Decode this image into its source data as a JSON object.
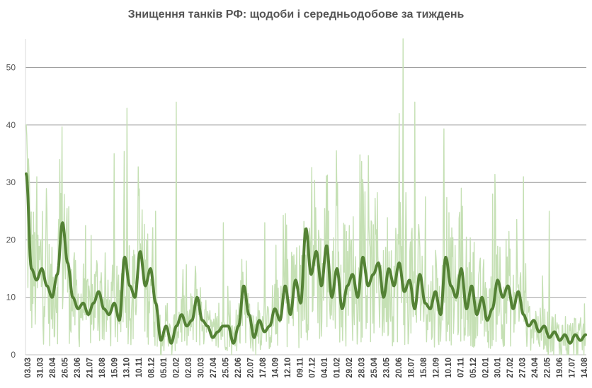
{
  "chart_data": {
    "type": "line",
    "title": "Знищення танків РФ: щодоби і середньодобове за тиждень",
    "xlabel": "",
    "ylabel": "",
    "ylim": [
      0,
      55
    ],
    "yticks": [
      0,
      10,
      20,
      30,
      40,
      50
    ],
    "grid": true,
    "legend": "none",
    "colors": {
      "daily": "#c5e0b4",
      "weekly": "#548235",
      "grid": "#808080",
      "text": "#555555"
    },
    "xtick_labels": [
      "03.03",
      "31.03",
      "28.04",
      "26.05",
      "23.06",
      "21.07",
      "18.08",
      "15.09",
      "13.10",
      "10.11",
      "08.12",
      "05.01",
      "02.02",
      "02.03",
      "30.03",
      "27.04",
      "25.05",
      "22.06",
      "20.07",
      "17.08",
      "14.09",
      "12.10",
      "09.11",
      "07.12",
      "04.01",
      "01.02",
      "29.02",
      "28.03",
      "25.04",
      "23.05",
      "20.06",
      "18.07",
      "15.08",
      "12.09",
      "10.10",
      "07.11",
      "05.12",
      "02.01",
      "30.01",
      "27.02",
      "27.03",
      "24.04",
      "22.05",
      "19.06",
      "17.07",
      "14.08"
    ],
    "series_weekly_anchors": [
      31.5,
      15,
      13,
      15,
      12,
      10,
      14,
      23,
      16,
      10,
      8,
      9,
      7,
      9,
      11,
      8,
      7,
      9,
      6,
      17,
      12,
      10,
      18,
      12,
      15,
      9,
      2.5,
      5,
      2,
      5,
      7,
      5,
      6,
      10,
      6,
      5,
      3,
      4,
      5,
      5,
      2,
      5,
      12,
      7,
      3,
      6,
      4,
      5,
      8,
      6,
      12,
      7,
      13,
      9,
      22,
      14,
      18,
      12,
      19,
      10,
      15,
      8,
      12,
      14,
      10,
      17,
      12,
      14,
      16,
      10,
      15,
      12,
      16,
      11,
      13,
      8,
      14,
      9,
      8,
      11,
      7,
      17,
      12,
      10,
      15,
      8,
      12,
      7,
      10,
      6,
      8,
      13,
      10,
      12,
      8,
      11,
      7,
      5,
      6,
      4,
      5,
      3,
      4,
      2.5,
      3.5,
      2,
      3.5,
      2.5,
      3.5
    ],
    "series_daily_spikes": [
      [
        0.2,
        34
      ],
      [
        2,
        31
      ],
      [
        4,
        25
      ],
      [
        6.5,
        34
      ],
      [
        17,
        35
      ],
      [
        25,
        25
      ],
      [
        29,
        44
      ],
      [
        38,
        23
      ],
      [
        46,
        23
      ],
      [
        55,
        22
      ],
      [
        62,
        18
      ],
      [
        72,
        42
      ],
      [
        72.8,
        55
      ],
      [
        75,
        44
      ],
      [
        84,
        29
      ],
      [
        90,
        28
      ],
      [
        96,
        31
      ],
      [
        101,
        25
      ],
      [
        110,
        23
      ],
      [
        120,
        22
      ],
      [
        128,
        21
      ],
      [
        138,
        21
      ],
      [
        145,
        23
      ],
      [
        156,
        19
      ],
      [
        166,
        11
      ]
    ],
    "series": [
      {
        "name": "",
        "kind": "daily"
      },
      {
        "name": "",
        "kind": "weekly"
      }
    ]
  }
}
